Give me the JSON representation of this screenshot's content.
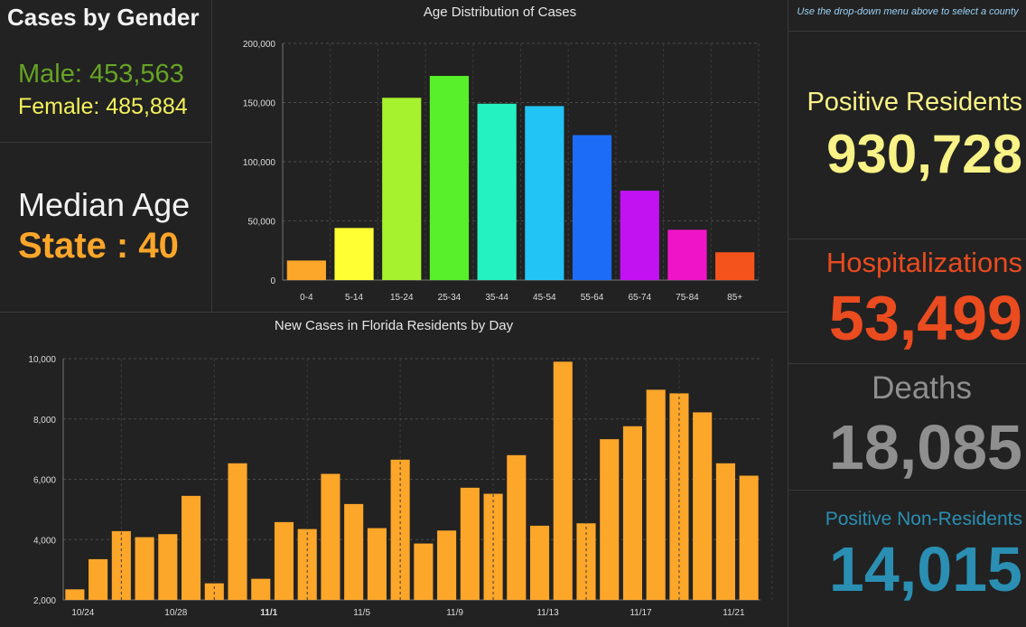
{
  "gender": {
    "title": "Cases by Gender",
    "male": "Male: 453,563",
    "female": "Female: 485,884"
  },
  "median": {
    "title": "Median Age",
    "value": "State : 40"
  },
  "hint": "Use the drop-down menu above to select a county",
  "stats": {
    "positive_residents_label": "Positive Residents",
    "positive_residents_value": "930,728",
    "hospitalizations_label": "Hospitalizations",
    "hospitalizations_value": "53,499",
    "deaths_label": "Deaths",
    "deaths_value": "18,085",
    "non_residents_label": "Positive Non-Residents",
    "non_residents_value": "14,015"
  },
  "colors": {
    "male": "#66a325",
    "female": "#f2f25c",
    "median": "#fca62a",
    "positive_residents": "#f8f287",
    "hospitalizations": "#ea4b1f",
    "deaths": "#8f8f8f",
    "non_residents": "#2a8fb2",
    "daily_bar": "#fca62a"
  },
  "chart_data": [
    {
      "type": "bar",
      "title": "Age Distribution of Cases",
      "categories": [
        "0-4",
        "5-14",
        "15-24",
        "25-34",
        "35-44",
        "45-54",
        "55-64",
        "65-74",
        "75-84",
        "85+"
      ],
      "values": [
        16500,
        44000,
        154000,
        172500,
        149000,
        147000,
        122500,
        75500,
        42500,
        23500
      ],
      "colors": [
        "#fca62a",
        "#ffff33",
        "#a6f22e",
        "#58f02a",
        "#24f2c0",
        "#22c4f5",
        "#1c6cf7",
        "#c212f2",
        "#f014c9",
        "#f5531c"
      ],
      "ylim": [
        0,
        200000
      ],
      "yticks": [
        "0",
        "50,000",
        "100,000",
        "150,000",
        "200,000"
      ],
      "ytick_values": [
        0,
        50000,
        100000,
        150000,
        200000
      ],
      "grid": true
    },
    {
      "type": "bar",
      "title": "New Cases in Florida Residents by Day",
      "values": [
        2350,
        3350,
        4280,
        4080,
        4180,
        5450,
        2550,
        6530,
        2700,
        4580,
        4350,
        6180,
        5180,
        4380,
        6650,
        3870,
        4300,
        5720,
        5520,
        6800,
        4460,
        9900,
        4540,
        7330,
        7760,
        8970,
        8850,
        8220,
        6530,
        6120
      ],
      "xtick_labels": [
        "10/24",
        "10/28",
        "11/1",
        "11/5",
        "11/9",
        "11/13",
        "11/17",
        "11/21"
      ],
      "xtick_indices": [
        0,
        4,
        8,
        12,
        16,
        20,
        24,
        28
      ],
      "xtick_bold_index": 2,
      "ylim": [
        2000,
        10000
      ],
      "yticks": [
        "2,000",
        "4,000",
        "6,000",
        "8,000",
        "10,000"
      ],
      "ytick_values": [
        2000,
        4000,
        6000,
        8000,
        10000
      ],
      "grid": true
    }
  ]
}
